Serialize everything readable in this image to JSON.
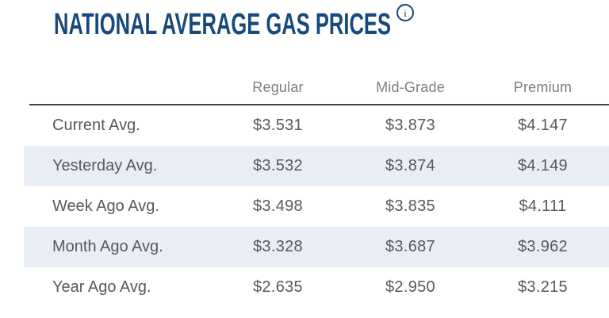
{
  "header": {
    "title": "NATIONAL AVERAGE GAS PRICES",
    "info_icon_glyph": "i"
  },
  "colors": {
    "title_blue": "#17497b",
    "column_header_gray": "#7d7e81",
    "body_text_gray": "#58595b",
    "row_shade_blue": "#e9eef4",
    "divider_gray": "#454648",
    "background": "#ffffff"
  },
  "table": {
    "column_headers": [
      "Regular",
      "Mid-Grade",
      "Premium"
    ],
    "rows": [
      {
        "label": "Current Avg.",
        "values": [
          "$3.531",
          "$3.873",
          "$4.147"
        ]
      },
      {
        "label": "Yesterday Avg.",
        "values": [
          "$3.532",
          "$3.874",
          "$4.149"
        ]
      },
      {
        "label": "Week Ago Avg.",
        "values": [
          "$3.498",
          "$3.835",
          "$4.111"
        ]
      },
      {
        "label": "Month Ago Avg.",
        "values": [
          "$3.328",
          "$3.687",
          "$3.962"
        ]
      },
      {
        "label": "Year Ago Avg.",
        "values": [
          "$2.635",
          "$2.950",
          "$3.215"
        ]
      }
    ]
  }
}
